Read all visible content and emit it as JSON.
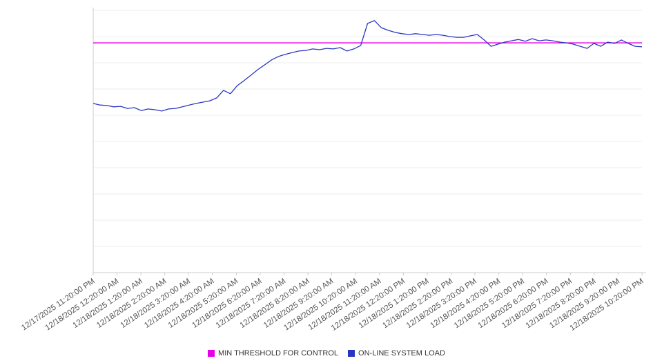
{
  "chart_data": {
    "type": "line",
    "title": "",
    "xlabel": "",
    "ylabel": "",
    "ylim": [
      0,
      100
    ],
    "grid": true,
    "legend_position": "bottom-center",
    "axis_color": "#cccccc",
    "grid_color": "#ececec",
    "x_tick_labels": [
      "12/17/2025 11:20:00 PM",
      "12/18/2025 12:20:00 AM",
      "12/18/2025 1:20:00 AM",
      "12/18/2025 2:20:00 AM",
      "12/18/2025 3:20:00 AM",
      "12/18/2025 4:20:00 AM",
      "12/18/2025 5:20:00 AM",
      "12/18/2025 6:20:00 AM",
      "12/18/2025 7:20:00 AM",
      "12/18/2025 8:20:00 AM",
      "12/18/2025 9:20:00 AM",
      "12/18/2025 10:20:00 AM",
      "12/18/2025 11:20:00 AM",
      "12/18/2025 12:20:00 PM",
      "12/18/2025 1:20:00 PM",
      "12/18/2025 2:20:00 PM",
      "12/18/2025 3:20:00 PM",
      "12/18/2025 4:20:00 PM",
      "12/18/2025 5:20:00 PM",
      "12/18/2025 6:20:00 PM",
      "12/18/2025 7:20:00 PM",
      "12/18/2025 8:20:00 PM",
      "12/18/2025 9:20:00 PM",
      "12/18/2025 10:20:00 PM"
    ],
    "series": [
      {
        "name": "MIN THRESHOLD FOR CONTROL",
        "color": "#e800e8",
        "style": "horizontal-threshold",
        "value": 87.6
      },
      {
        "name": "ON-LINE SYSTEM LOAD",
        "color": "#2a36c1",
        "style": "line",
        "values": [
          64.5,
          63.9,
          63.7,
          63.2,
          63.4,
          62.6,
          62.9,
          61.8,
          62.4,
          62.1,
          61.6,
          62.4,
          62.6,
          63.2,
          63.9,
          64.5,
          65.0,
          65.5,
          66.6,
          69.5,
          68.2,
          71.3,
          73.2,
          75.3,
          77.4,
          79.2,
          81.1,
          82.4,
          83.2,
          83.9,
          84.5,
          84.7,
          85.3,
          85.0,
          85.5,
          85.3,
          85.8,
          84.5,
          85.3,
          86.6,
          95.0,
          96.1,
          93.4,
          92.4,
          91.6,
          91.1,
          90.8,
          91.1,
          90.8,
          90.5,
          90.8,
          90.5,
          90.0,
          89.7,
          89.7,
          90.3,
          90.8,
          88.7,
          86.3,
          87.1,
          87.9,
          88.4,
          88.9,
          88.2,
          89.2,
          88.4,
          88.7,
          88.4,
          87.9,
          87.6,
          87.1,
          86.3,
          85.5,
          87.4,
          86.3,
          87.9,
          87.4,
          88.7,
          87.4,
          86.3,
          86.1
        ]
      }
    ]
  },
  "legend": {
    "items": [
      {
        "label": "MIN THRESHOLD FOR CONTROL",
        "color": "#e800e8"
      },
      {
        "label": "ON-LINE SYSTEM LOAD",
        "color": "#2a36c1"
      }
    ]
  }
}
